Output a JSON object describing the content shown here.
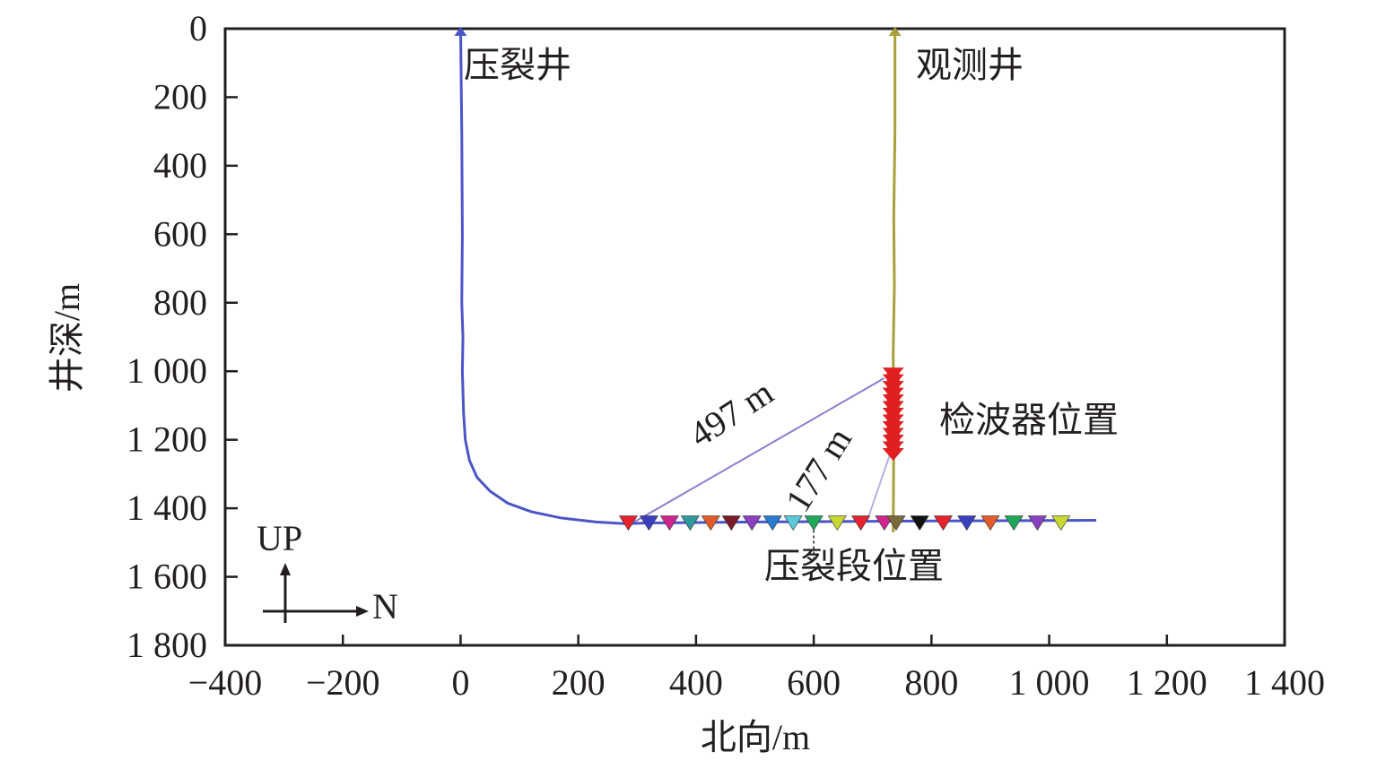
{
  "chart_data": {
    "type": "line",
    "xlabel": "北向/m",
    "ylabel": "井深/m",
    "xlim": [
      -400,
      1400
    ],
    "ylim": [
      1800,
      0
    ],
    "x_ticks": [
      -400,
      -200,
      0,
      200,
      400,
      600,
      800,
      1000,
      1200,
      1400
    ],
    "x_tick_labels": [
      "−400",
      "−200",
      "0",
      "200",
      "400",
      "600",
      "800",
      "1 000",
      "1 200",
      "1 400"
    ],
    "y_ticks": [
      0,
      200,
      400,
      600,
      800,
      1000,
      1200,
      1400,
      1600,
      1800
    ],
    "y_tick_labels": [
      "0",
      "200",
      "400",
      "600",
      "800",
      "1 000",
      "1 200",
      "1 400",
      "1 600",
      "1 800"
    ],
    "grid": false,
    "series": [
      {
        "name": "压裂井",
        "color": "#4a55c8",
        "x": [
          0,
          2,
          3,
          2,
          4,
          3,
          5,
          8,
          15,
          28,
          50,
          80,
          120,
          170,
          230,
          280,
          320,
          500,
          800,
          1080
        ],
        "y": [
          0,
          300,
          600,
          800,
          900,
          1000,
          1120,
          1200,
          1260,
          1310,
          1350,
          1385,
          1410,
          1428,
          1440,
          1445,
          1443,
          1440,
          1437,
          1435
        ]
      },
      {
        "name": "观测井",
        "color": "#a8a03a",
        "x": [
          738,
          738,
          736,
          737,
          735,
          736,
          735
        ],
        "y": [
          0,
          300,
          550,
          750,
          950,
          1200,
          1470
        ]
      }
    ],
    "geophones": {
      "label": "检波器位置",
      "x": 735,
      "depth_from": 1005,
      "depth_to": 1240,
      "count": 13,
      "color": "#e02020"
    },
    "frac_stages": {
      "label": "压裂段位置",
      "depth": 1443,
      "x": [
        285,
        320,
        355,
        390,
        425,
        460,
        495,
        530,
        565,
        600,
        640,
        680,
        720,
        740,
        780,
        820,
        860,
        900,
        940,
        980,
        1020
      ],
      "colors": [
        "#e8212f",
        "#3a3fbf",
        "#d0258f",
        "#2e9a9a",
        "#e35b2a",
        "#7a1a2a",
        "#8a3fbf",
        "#2a7ad0",
        "#5ac8d8",
        "#1fa85a",
        "#c8d830",
        "#e8212f",
        "#d0258f",
        "#7a6a3a",
        "#111111",
        "#e8212f",
        "#3a3fbf",
        "#e35b2a",
        "#1fa85a",
        "#8a3fbf",
        "#c8d830"
      ]
    },
    "annotations": {
      "frac_well": "压裂井",
      "obs_well": "观测井",
      "geophone_label": "检波器位置",
      "stage_label": "压裂段位置",
      "dist_long": "497 m",
      "dist_short": "177 m",
      "compass_up": "UP",
      "compass_n": "N"
    },
    "distance_lines": [
      {
        "from": [
          295,
          1440
        ],
        "to": [
          720,
          1020
        ],
        "color": "#8a7fd0"
      },
      {
        "from": [
          690,
          1440
        ],
        "to": [
          730,
          1240
        ],
        "color": "#b7b2e0"
      }
    ]
  }
}
